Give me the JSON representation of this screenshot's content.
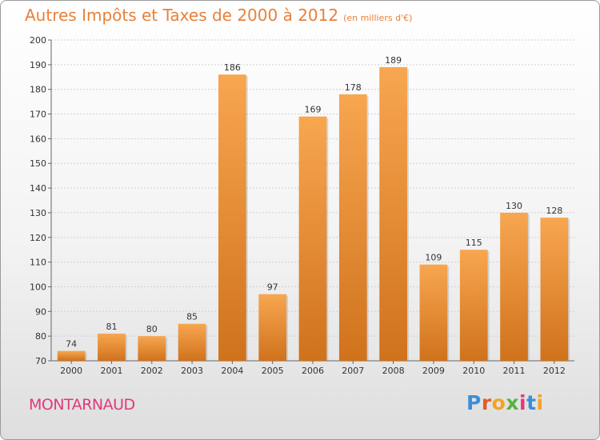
{
  "title": "Autres Impôts et Taxes de 2000 à 2012",
  "unit": "(en milliers d'€)",
  "commune": "MONTARNAUD",
  "logo": {
    "letters": [
      "P",
      "r",
      "o",
      "x",
      "i",
      "t",
      "i"
    ],
    "colors": [
      "#3b8fd6",
      "#e35a2a",
      "#f2a324",
      "#5ab23c",
      "#e0397a",
      "#3b8fd6",
      "#f2a324"
    ]
  },
  "colors": {
    "bar_top": "#f8a650",
    "bar_bottom": "#d0721c",
    "title": "#e8803a",
    "commune": "#e0397a"
  },
  "chart_data": {
    "type": "bar",
    "categories": [
      "2000",
      "2001",
      "2002",
      "2003",
      "2004",
      "2005",
      "2006",
      "2007",
      "2008",
      "2009",
      "2010",
      "2011",
      "2012"
    ],
    "values": [
      74,
      81,
      80,
      85,
      186,
      97,
      169,
      178,
      189,
      109,
      115,
      130,
      128
    ],
    "ylim": [
      70,
      200
    ],
    "yticks": [
      70,
      80,
      90,
      100,
      110,
      120,
      130,
      140,
      150,
      160,
      170,
      180,
      190,
      200
    ],
    "grid": true,
    "xlabel": "",
    "ylabel": ""
  }
}
